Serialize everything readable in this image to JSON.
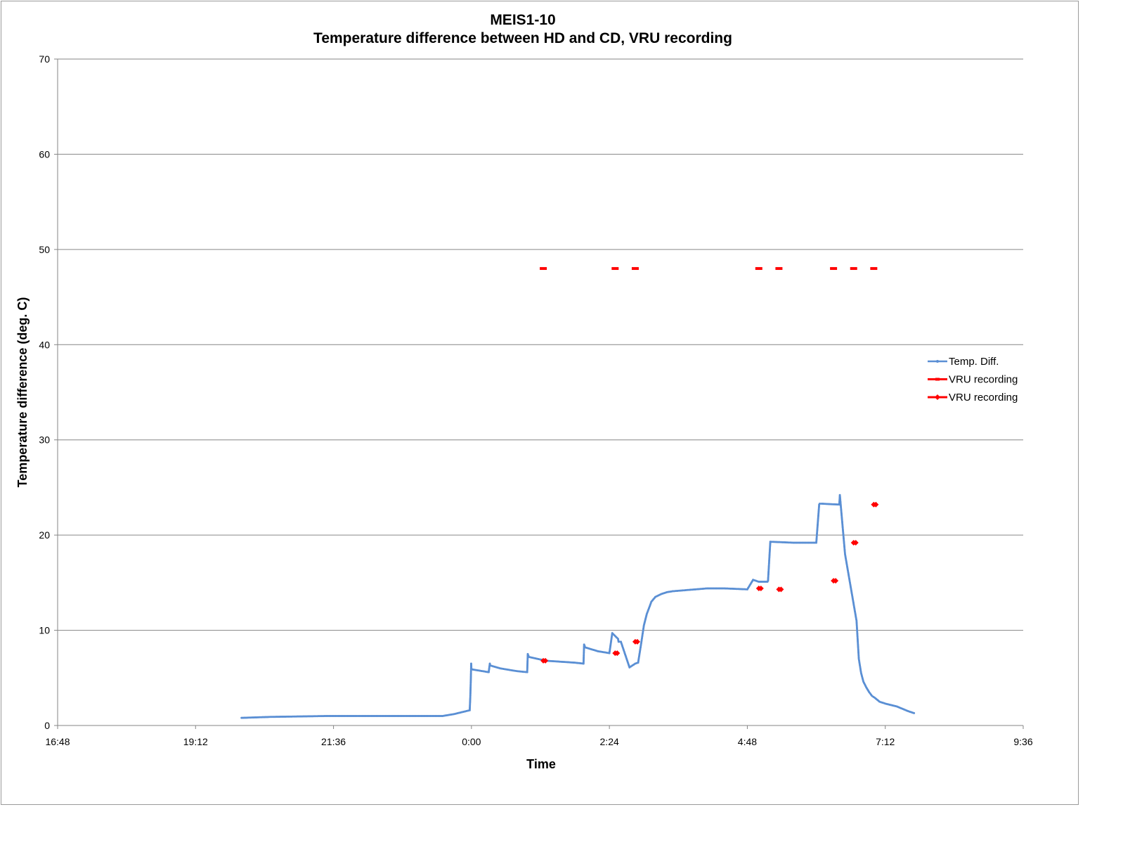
{
  "chart_data": {
    "type": "line",
    "title_line1": "MEIS1-10",
    "title_line2": "Temperature difference between HD and CD, VRU recording",
    "xlabel": "Time",
    "ylabel": "Temperature difference (deg. C)",
    "x_axis": {
      "min_hours": 16.8,
      "max_hours": 33.6,
      "ticks": [
        {
          "hours": 16.8,
          "label": "16:48"
        },
        {
          "hours": 19.2,
          "label": "19:12"
        },
        {
          "hours": 21.6,
          "label": "21:36"
        },
        {
          "hours": 24.0,
          "label": "0:00"
        },
        {
          "hours": 26.4,
          "label": "2:24"
        },
        {
          "hours": 28.8,
          "label": "4:48"
        },
        {
          "hours": 31.2,
          "label": "7:12"
        },
        {
          "hours": 33.6,
          "label": "9:36"
        }
      ]
    },
    "y_axis": {
      "min": 0,
      "max": 70,
      "ticks": [
        {
          "value": 0,
          "label": "0"
        },
        {
          "value": 10,
          "label": "10"
        },
        {
          "value": 20,
          "label": "20"
        },
        {
          "value": 30,
          "label": "30"
        },
        {
          "value": 40,
          "label": "40"
        },
        {
          "value": 50,
          "label": "50"
        },
        {
          "value": 60,
          "label": "60"
        },
        {
          "value": 70,
          "label": "70"
        }
      ]
    },
    "grid": "horizontal",
    "legend_position": "right",
    "legend": [
      {
        "name": "Temp. Diff.",
        "color": "#5a8fd4",
        "marker": "small-dot"
      },
      {
        "name": "VRU recording",
        "color": "#ff0000",
        "marker": "dash"
      },
      {
        "name": "VRU recording",
        "color": "#ff0000",
        "marker": "diamond"
      }
    ],
    "series": [
      {
        "name": "Temp. Diff.",
        "color": "#5a8fd4",
        "x_hours": [
          20.0,
          20.5,
          21.0,
          21.5,
          22.0,
          22.5,
          23.0,
          23.5,
          23.7,
          23.97,
          23.98,
          23.99,
          23.995,
          24.0,
          24.1,
          24.3,
          24.32,
          24.33,
          24.5,
          24.8,
          24.97,
          24.98,
          25.0,
          25.3,
          25.8,
          25.95,
          25.96,
          25.98,
          26.2,
          26.4,
          26.45,
          26.55,
          26.56,
          26.6,
          26.75,
          26.8,
          26.85,
          26.9,
          26.95,
          27.0,
          27.05,
          27.1,
          27.13,
          27.2,
          27.3,
          27.4,
          27.5,
          27.7,
          27.9,
          28.1,
          28.4,
          28.8,
          28.9,
          29.0,
          29.15,
          29.16,
          29.2,
          29.6,
          30.0,
          30.05,
          30.06,
          30.1,
          30.4,
          30.41,
          30.5,
          30.7,
          30.72,
          30.74,
          30.78,
          30.82,
          30.87,
          30.92,
          30.97,
          31.02,
          31.1,
          31.2,
          31.4,
          31.6,
          31.7
        ],
        "values": [
          0.8,
          0.9,
          0.95,
          1.0,
          1.0,
          1.0,
          1.0,
          1.0,
          1.2,
          1.6,
          3.0,
          5.0,
          6.5,
          5.9,
          5.8,
          5.6,
          6.5,
          6.3,
          6.0,
          5.7,
          5.6,
          7.5,
          7.2,
          6.8,
          6.6,
          6.5,
          8.5,
          8.2,
          7.8,
          7.6,
          9.7,
          9.1,
          8.8,
          8.8,
          6.1,
          6.3,
          6.5,
          6.6,
          8.5,
          10.5,
          11.7,
          12.5,
          13.0,
          13.5,
          13.8,
          14.0,
          14.1,
          14.2,
          14.3,
          14.4,
          14.4,
          14.3,
          15.3,
          15.1,
          15.1,
          15.2,
          19.3,
          19.2,
          19.2,
          23.2,
          23.3,
          23.3,
          23.2,
          24.2,
          18.0,
          11.0,
          9.0,
          7.0,
          5.5,
          4.6,
          4.0,
          3.5,
          3.1,
          2.9,
          2.5,
          2.3,
          2.0,
          1.5,
          1.3
        ]
      },
      {
        "name": "VRU recording",
        "color": "#ff0000",
        "x_hours": [
          25.25,
          26.5,
          26.85,
          29.0,
          29.35,
          30.3,
          30.65,
          31.0
        ],
        "values": [
          48,
          48,
          48,
          48,
          48,
          48,
          48,
          48
        ]
      },
      {
        "name": "VRU recording",
        "color": "#ff0000",
        "x_hours": [
          25.25,
          26.5,
          26.85,
          29.0,
          29.35,
          30.3,
          30.65,
          31.0
        ],
        "values": [
          6.8,
          7.6,
          8.8,
          14.4,
          14.3,
          15.2,
          19.2,
          23.2
        ]
      }
    ]
  }
}
